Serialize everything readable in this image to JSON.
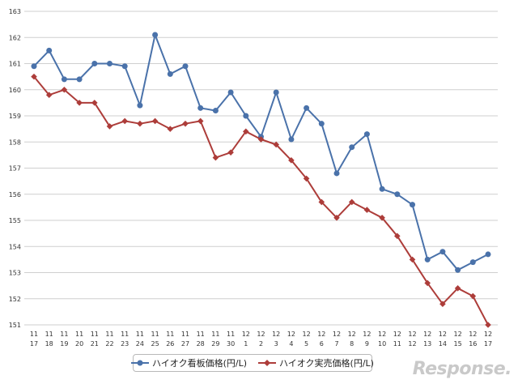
{
  "chart_data": {
    "type": "line",
    "x_labels": [
      [
        "11",
        "17"
      ],
      [
        "11",
        "18"
      ],
      [
        "11",
        "19"
      ],
      [
        "11",
        "20"
      ],
      [
        "11",
        "21"
      ],
      [
        "11",
        "22"
      ],
      [
        "11",
        "23"
      ],
      [
        "11",
        "24"
      ],
      [
        "11",
        "25"
      ],
      [
        "11",
        "26"
      ],
      [
        "11",
        "27"
      ],
      [
        "11",
        "28"
      ],
      [
        "11",
        "29"
      ],
      [
        "11",
        "30"
      ],
      [
        "12",
        "1"
      ],
      [
        "12",
        "2"
      ],
      [
        "12",
        "3"
      ],
      [
        "12",
        "4"
      ],
      [
        "12",
        "5"
      ],
      [
        "12",
        "6"
      ],
      [
        "12",
        "7"
      ],
      [
        "12",
        "8"
      ],
      [
        "12",
        "9"
      ],
      [
        "12",
        "10"
      ],
      [
        "12",
        "11"
      ],
      [
        "12",
        "12"
      ],
      [
        "12",
        "13"
      ],
      [
        "12",
        "14"
      ],
      [
        "12",
        "15"
      ],
      [
        "12",
        "16"
      ],
      [
        "12",
        "17"
      ]
    ],
    "ylim": [
      151,
      163
    ],
    "y_ticks": [
      151,
      152,
      153,
      154,
      155,
      156,
      157,
      158,
      159,
      160,
      161,
      162,
      163
    ],
    "grid": "horizontal",
    "legend_position": "bottom",
    "series": [
      {
        "name": "ハイオク看板価格(円/L)",
        "color": "#4a72aa",
        "marker": "circle",
        "values": [
          160.9,
          161.5,
          160.4,
          160.4,
          161.0,
          161.0,
          160.9,
          159.4,
          162.1,
          160.6,
          160.9,
          159.3,
          159.2,
          159.9,
          159.0,
          158.2,
          159.9,
          158.1,
          159.3,
          158.7,
          156.8,
          157.8,
          158.3,
          156.2,
          156.0,
          155.6,
          153.5,
          153.8,
          153.1,
          153.4,
          153.7
        ]
      },
      {
        "name": "ハイオク実売価格(円/L)",
        "color": "#ad3d3a",
        "marker": "diamond",
        "values": [
          160.5,
          159.8,
          160.0,
          159.5,
          159.5,
          158.6,
          158.8,
          158.7,
          158.8,
          158.5,
          158.7,
          158.8,
          157.4,
          157.6,
          158.4,
          158.1,
          157.9,
          157.3,
          156.6,
          155.7,
          155.1,
          155.7,
          155.4,
          155.1,
          154.4,
          153.5,
          152.6,
          151.8,
          152.4,
          152.1,
          151.0
        ]
      }
    ]
  },
  "watermark": "Response."
}
